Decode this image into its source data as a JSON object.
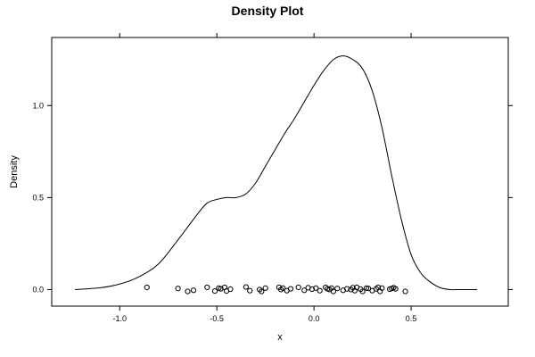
{
  "chart_data": {
    "type": "line",
    "title": "Density Plot",
    "xlabel": "x",
    "ylabel": "Density",
    "xlim": [
      -1.35,
      1.0
    ],
    "ylim": [
      -0.09,
      1.37
    ],
    "x_ticks": [
      -1.0,
      -0.5,
      0.0,
      0.5
    ],
    "x_tick_labels": [
      "-1.0",
      "-0.5",
      "0.0",
      "0.5"
    ],
    "y_ticks": [
      0.0,
      0.5,
      1.0
    ],
    "y_tick_labels": [
      "0.0",
      "0.5",
      "1.0"
    ],
    "grid": false,
    "legend": "none",
    "series": [
      {
        "kind": "density",
        "x": [
          -1.23,
          -1.1,
          -1.0,
          -0.9,
          -0.8,
          -0.7,
          -0.6,
          -0.55,
          -0.5,
          -0.45,
          -0.4,
          -0.35,
          -0.3,
          -0.25,
          -0.2,
          -0.15,
          -0.1,
          -0.05,
          0.0,
          0.05,
          0.1,
          0.15,
          0.2,
          0.25,
          0.3,
          0.35,
          0.4,
          0.45,
          0.5,
          0.55,
          0.6,
          0.65,
          0.7,
          0.75,
          0.84
        ],
        "y": [
          0.0,
          0.01,
          0.03,
          0.07,
          0.14,
          0.27,
          0.41,
          0.47,
          0.49,
          0.5,
          0.5,
          0.52,
          0.58,
          0.67,
          0.76,
          0.85,
          0.93,
          1.02,
          1.11,
          1.19,
          1.25,
          1.27,
          1.25,
          1.2,
          1.08,
          0.88,
          0.62,
          0.38,
          0.19,
          0.09,
          0.04,
          0.01,
          0.0,
          0.0,
          0.0
        ]
      },
      {
        "kind": "rug",
        "x": [
          -0.86,
          -0.7,
          -0.65,
          -0.62,
          -0.55,
          -0.51,
          -0.49,
          -0.48,
          -0.46,
          -0.45,
          -0.43,
          -0.35,
          -0.33,
          -0.28,
          -0.27,
          -0.25,
          -0.18,
          -0.17,
          -0.16,
          -0.14,
          -0.12,
          -0.08,
          -0.05,
          -0.03,
          -0.01,
          0.01,
          0.03,
          0.06,
          0.07,
          0.08,
          0.09,
          0.1,
          0.12,
          0.15,
          0.17,
          0.19,
          0.2,
          0.21,
          0.22,
          0.24,
          0.25,
          0.27,
          0.28,
          0.3,
          0.32,
          0.33,
          0.34,
          0.35,
          0.39,
          0.4,
          0.41,
          0.42,
          0.47
        ],
        "y": [
          0.012,
          0.006,
          -0.01,
          -0.004,
          0.012,
          -0.008,
          0.008,
          0.004,
          0.012,
          -0.008,
          0.002,
          0.014,
          -0.006,
          0.0,
          -0.01,
          0.008,
          0.012,
          0.0,
          0.008,
          -0.006,
          0.004,
          0.012,
          -0.004,
          0.01,
          0.002,
          0.008,
          -0.006,
          0.012,
          0.004,
          0.0,
          0.008,
          -0.01,
          0.006,
          -0.004,
          0.004,
          0.0,
          0.01,
          -0.006,
          0.012,
          0.002,
          -0.01,
          0.008,
          0.006,
          -0.006,
          0.004,
          0.012,
          -0.01,
          0.008,
          0.002,
          0.006,
          0.01,
          0.004,
          -0.01
        ]
      }
    ]
  }
}
